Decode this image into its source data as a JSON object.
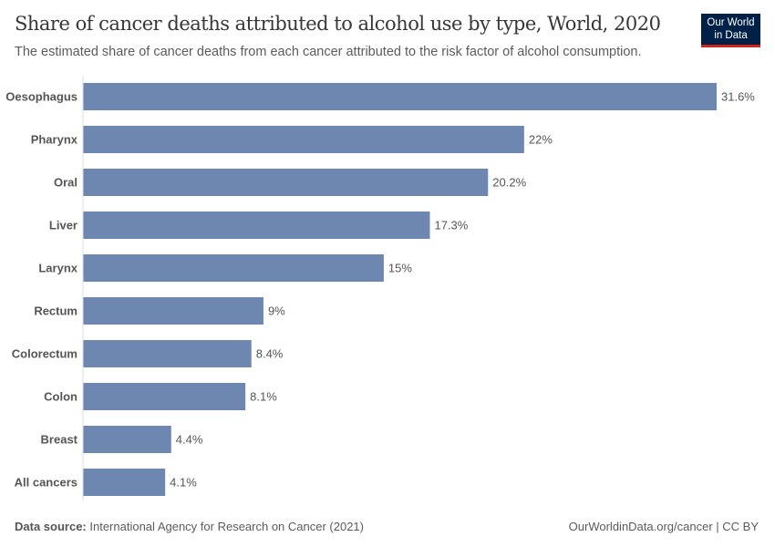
{
  "header": {
    "title": "Share of cancer deaths attributed to alcohol use by type, World, 2020",
    "subtitle": "The estimated share of cancer deaths from each cancer attributed to the risk factor of alcohol consumption.",
    "logo_line1": "Our World",
    "logo_line2": "in Data"
  },
  "footer": {
    "source_label": "Data source:",
    "source": "International Agency for Research on Cancer (2021)",
    "url": "OurWorldinData.org/cancer | CC BY"
  },
  "chart_data": {
    "type": "bar",
    "orientation": "horizontal",
    "title": "Share of cancer deaths attributed to alcohol use by type, World, 2020",
    "categories": [
      "Oesophagus",
      "Pharynx",
      "Oral",
      "Liver",
      "Larynx",
      "Rectum",
      "Colorectum",
      "Colon",
      "Breast",
      "All cancers"
    ],
    "values": [
      31.6,
      22,
      20.2,
      17.3,
      15,
      9,
      8.4,
      8.1,
      4.4,
      4.1
    ],
    "data_labels": [
      "31.6%",
      "22%",
      "20.2%",
      "17.3%",
      "15%",
      "9%",
      "8.4%",
      "8.1%",
      "4.4%",
      "4.1%"
    ],
    "unit": "%",
    "xlim": [
      0,
      31.6
    ],
    "grid": false,
    "color": "#6d87b0"
  }
}
